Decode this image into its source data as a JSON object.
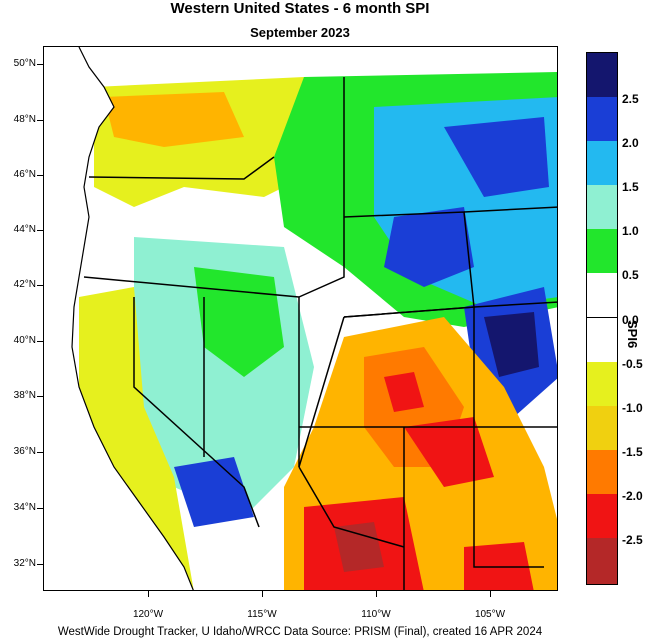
{
  "title": "Western United States - 6 month SPI",
  "subtitle": "September 2023",
  "footer": "WestWide Drought Tracker, U Idaho/WRCC Data Source: PRISM (Final), created 16 APR 2024",
  "legend": {
    "title": "SPI6",
    "colors": [
      "#14166e",
      "#1a3ed6",
      "#1a6ef5",
      "#23b9f0",
      "#8ff0d2",
      "#22e62c",
      "#ffffff",
      "#ffffff",
      "#e6f01e",
      "#f0d010",
      "#ffb400",
      "#ff7a00",
      "#f01414",
      "#b42828"
    ],
    "labels": [
      "2.5",
      "2.0",
      "1.5",
      "1.0",
      "0.5",
      "0.0",
      "-0.5",
      "-1.0",
      "-1.5",
      "-2.0",
      "-2.5"
    ]
  },
  "axes": {
    "lat_labels": [
      "50°N",
      "48°N",
      "46°N",
      "44°N",
      "42°N",
      "40°N",
      "38°N",
      "36°N",
      "34°N",
      "32°N"
    ],
    "lon_labels": [
      "120°W",
      "115°W",
      "110°W",
      "105°W"
    ]
  },
  "map_colors": {
    "wet_strong": "#1a3ed6",
    "wet_mid": "#23b9f0",
    "wet_light": "#8ff0d2",
    "wet_slight": "#22e62c",
    "dry_slight": "#e6f01e",
    "dry_mid": "#ffb400",
    "dry_strong": "#ff7a00",
    "dry_severe": "#f01414",
    "dry_extreme": "#b42828"
  }
}
